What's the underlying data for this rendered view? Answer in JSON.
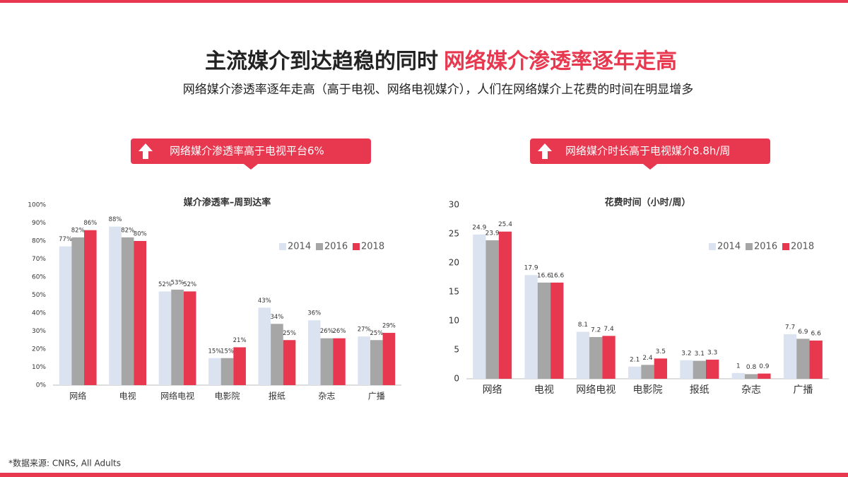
{
  "header": {
    "title_black": "主流媒介到达趋稳的同时",
    "title_red": "网络媒介渗透率逐年走高",
    "subtitle": "网络媒介渗透率逐年走高（高于电视、网络电视媒介），人们在网络媒介上花费的时间在明显增多"
  },
  "callouts": [
    "网络媒介渗透率高于电视平台6%",
    "网络媒介时长高于电视媒介8.8h/周"
  ],
  "footnote": "*数据来源: CNRS, All Adults",
  "chart_data": [
    {
      "type": "bar",
      "title": "媒介渗透率–周到达率",
      "categories": [
        "网络",
        "电视",
        "网络电视",
        "电影院",
        "报纸",
        "杂志",
        "广播"
      ],
      "series": [
        {
          "name": "2014",
          "color": "#dce3f0",
          "values": [
            77,
            88,
            52,
            15,
            43,
            36,
            27
          ],
          "value_labels": [
            "77%",
            "88%",
            "52%",
            "15%",
            "43%",
            "36%",
            "27%"
          ]
        },
        {
          "name": "2016",
          "color": "#a6a6a6",
          "values": [
            82,
            82,
            53,
            15,
            34,
            26,
            25
          ],
          "value_labels": [
            "82%",
            "82%",
            "53%",
            "15%",
            "34%",
            "26%",
            "25%"
          ]
        },
        {
          "name": "2018",
          "color": "#e8384f",
          "values": [
            86,
            80,
            52,
            21,
            25,
            26,
            29
          ],
          "value_labels": [
            "86%",
            "80%",
            "52%",
            "21%",
            "25%",
            "26%",
            "29%"
          ]
        }
      ],
      "ylim": [
        0,
        100
      ],
      "yticks": [
        {
          "value": 0,
          "label": "0%"
        },
        {
          "value": 10,
          "label": "10%"
        },
        {
          "value": 20,
          "label": "20%"
        },
        {
          "value": 30,
          "label": "30%"
        },
        {
          "value": 40,
          "label": "40%"
        },
        {
          "value": 50,
          "label": "50%"
        },
        {
          "value": 60,
          "label": "60%"
        },
        {
          "value": 70,
          "label": "70%"
        },
        {
          "value": 80,
          "label": "80%"
        },
        {
          "value": 90,
          "label": "90%"
        },
        {
          "value": 100,
          "label": "100%"
        }
      ],
      "grid": false,
      "legend": "top-right"
    },
    {
      "type": "bar",
      "title": "花费时间（小时/周）",
      "categories": [
        "网络",
        "电视",
        "网络电视",
        "电影院",
        "报纸",
        "杂志",
        "广播"
      ],
      "series": [
        {
          "name": "2014",
          "color": "#dce3f0",
          "values": [
            24.9,
            17.9,
            8.1,
            2.1,
            3.2,
            1,
            7.7
          ]
        },
        {
          "name": "2016",
          "color": "#a6a6a6",
          "values": [
            23.9,
            16.6,
            7.2,
            2.4,
            3.1,
            0.8,
            6.9
          ]
        },
        {
          "name": "2018",
          "color": "#e8384f",
          "values": [
            25.4,
            16.6,
            7.4,
            3.5,
            3.3,
            0.9,
            6.6
          ]
        }
      ],
      "ylim": [
        0,
        30
      ],
      "yticks": [
        0,
        5,
        10,
        15,
        20,
        25,
        30
      ],
      "grid": false,
      "legend": "top-right"
    }
  ]
}
